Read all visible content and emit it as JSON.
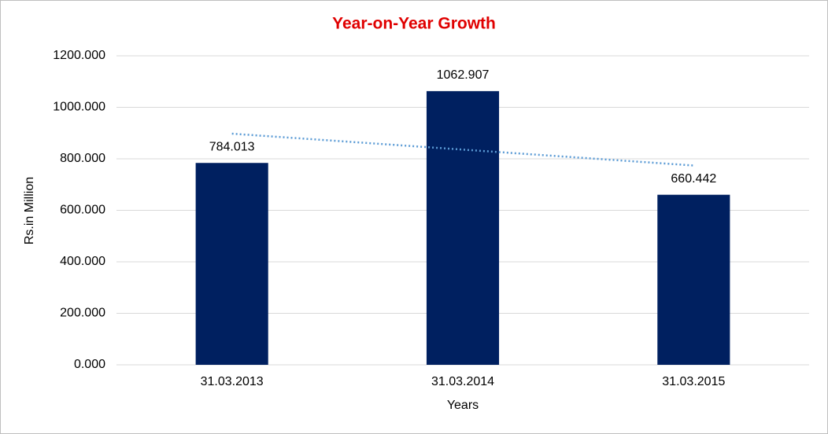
{
  "chart_data": {
    "type": "bar",
    "title": "Year-on-Year Growth",
    "x_label": "Years",
    "y_label": "Rs.in Million",
    "categories": [
      "31.03.2013",
      "31.03.2014",
      "31.03.2015"
    ],
    "values": [
      784.013,
      1062.907,
      660.442
    ],
    "color": "#002060",
    "ylim": [
      0,
      1200
    ],
    "yticks": [
      {
        "value": 0,
        "label": "0.000"
      },
      {
        "value": 200,
        "label": "200.000"
      },
      {
        "value": 400,
        "label": "400.000"
      },
      {
        "value": 600,
        "label": "600.000"
      },
      {
        "value": 800,
        "label": "800.000"
      },
      {
        "value": 1000,
        "label": "1000.000"
      },
      {
        "value": 1200,
        "label": "1200.000"
      }
    ],
    "grid": true,
    "data_labels": true,
    "trendline": "linear",
    "trendline_color": "#5b9bd5"
  }
}
